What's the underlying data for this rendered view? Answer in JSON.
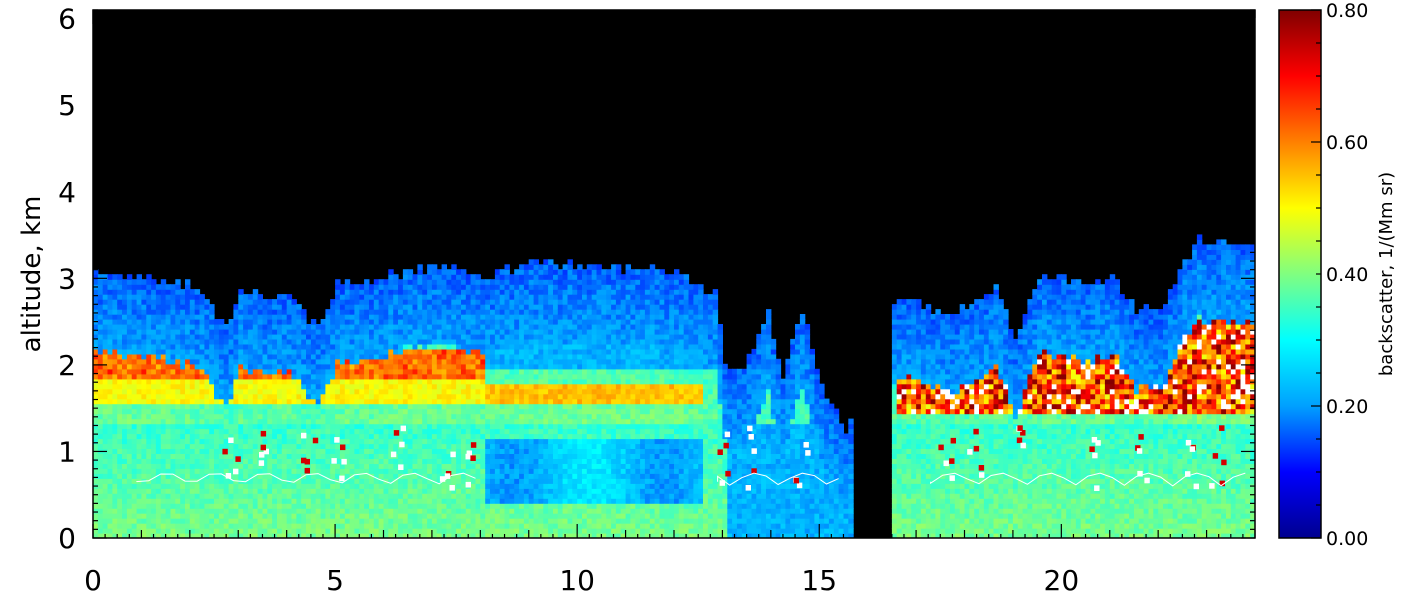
{
  "chart_data": {
    "type": "heatmap",
    "title": "",
    "xlabel": "",
    "ylabel": "altitude, km",
    "xlim": [
      0,
      24
    ],
    "ylim": [
      0,
      6.1
    ],
    "x_ticks": [
      0,
      5,
      10,
      15,
      20
    ],
    "y_ticks": [
      0,
      1,
      2,
      3,
      4,
      5,
      6
    ],
    "colorbar": {
      "label": "backscatter, 1/(Mm sr)",
      "range": [
        0.0,
        0.8
      ],
      "ticks": [
        "0.00",
        "0.20",
        "0.40",
        "0.60",
        "0.80"
      ],
      "colormap": [
        "#00008f",
        "#0000ff",
        "#00a0ff",
        "#00ffff",
        "#80ff80",
        "#ffff00",
        "#ff8000",
        "#ff0000",
        "#800000"
      ]
    },
    "background_color": "#000000",
    "saturation_color": "#ffffff",
    "cloud_top_profile": [
      {
        "x": 0.0,
        "top": 3.05
      },
      {
        "x": 1.0,
        "top": 2.95
      },
      {
        "x": 2.0,
        "top": 2.9
      },
      {
        "x": 2.75,
        "top": 2.4
      },
      {
        "x": 3.0,
        "top": 2.85
      },
      {
        "x": 4.0,
        "top": 2.75
      },
      {
        "x": 4.6,
        "top": 2.4
      },
      {
        "x": 5.0,
        "top": 2.9
      },
      {
        "x": 6.0,
        "top": 3.0
      },
      {
        "x": 7.0,
        "top": 3.1
      },
      {
        "x": 7.7,
        "top": 3.05
      },
      {
        "x": 8.2,
        "top": 3.0
      },
      {
        "x": 9.0,
        "top": 3.15
      },
      {
        "x": 10.0,
        "top": 3.15
      },
      {
        "x": 11.0,
        "top": 3.1
      },
      {
        "x": 12.0,
        "top": 3.05
      },
      {
        "x": 12.8,
        "top": 2.8
      },
      {
        "x": 13.0,
        "top": 2.0
      },
      {
        "x": 13.4,
        "top": 1.9
      },
      {
        "x": 13.9,
        "top": 2.6
      },
      {
        "x": 14.2,
        "top": 1.8
      },
      {
        "x": 14.6,
        "top": 2.6
      },
      {
        "x": 15.0,
        "top": 1.7
      },
      {
        "x": 15.5,
        "top": 1.2
      },
      {
        "x": 16.5,
        "top": 2.7
      },
      {
        "x": 17.0,
        "top": 2.7
      },
      {
        "x": 17.5,
        "top": 2.6
      },
      {
        "x": 18.0,
        "top": 2.6
      },
      {
        "x": 18.6,
        "top": 2.9
      },
      {
        "x": 19.0,
        "top": 2.3
      },
      {
        "x": 19.5,
        "top": 3.0
      },
      {
        "x": 20.0,
        "top": 3.0
      },
      {
        "x": 20.5,
        "top": 2.9
      },
      {
        "x": 21.0,
        "top": 3.0
      },
      {
        "x": 21.5,
        "top": 2.6
      },
      {
        "x": 22.0,
        "top": 2.6
      },
      {
        "x": 22.4,
        "top": 3.1
      },
      {
        "x": 22.8,
        "top": 3.4
      },
      {
        "x": 23.2,
        "top": 3.4
      },
      {
        "x": 23.6,
        "top": 3.4
      },
      {
        "x": 24.0,
        "top": 3.3
      }
    ],
    "no_data_gaps": [
      {
        "from": 15.6,
        "to": 16.4
      }
    ]
  }
}
